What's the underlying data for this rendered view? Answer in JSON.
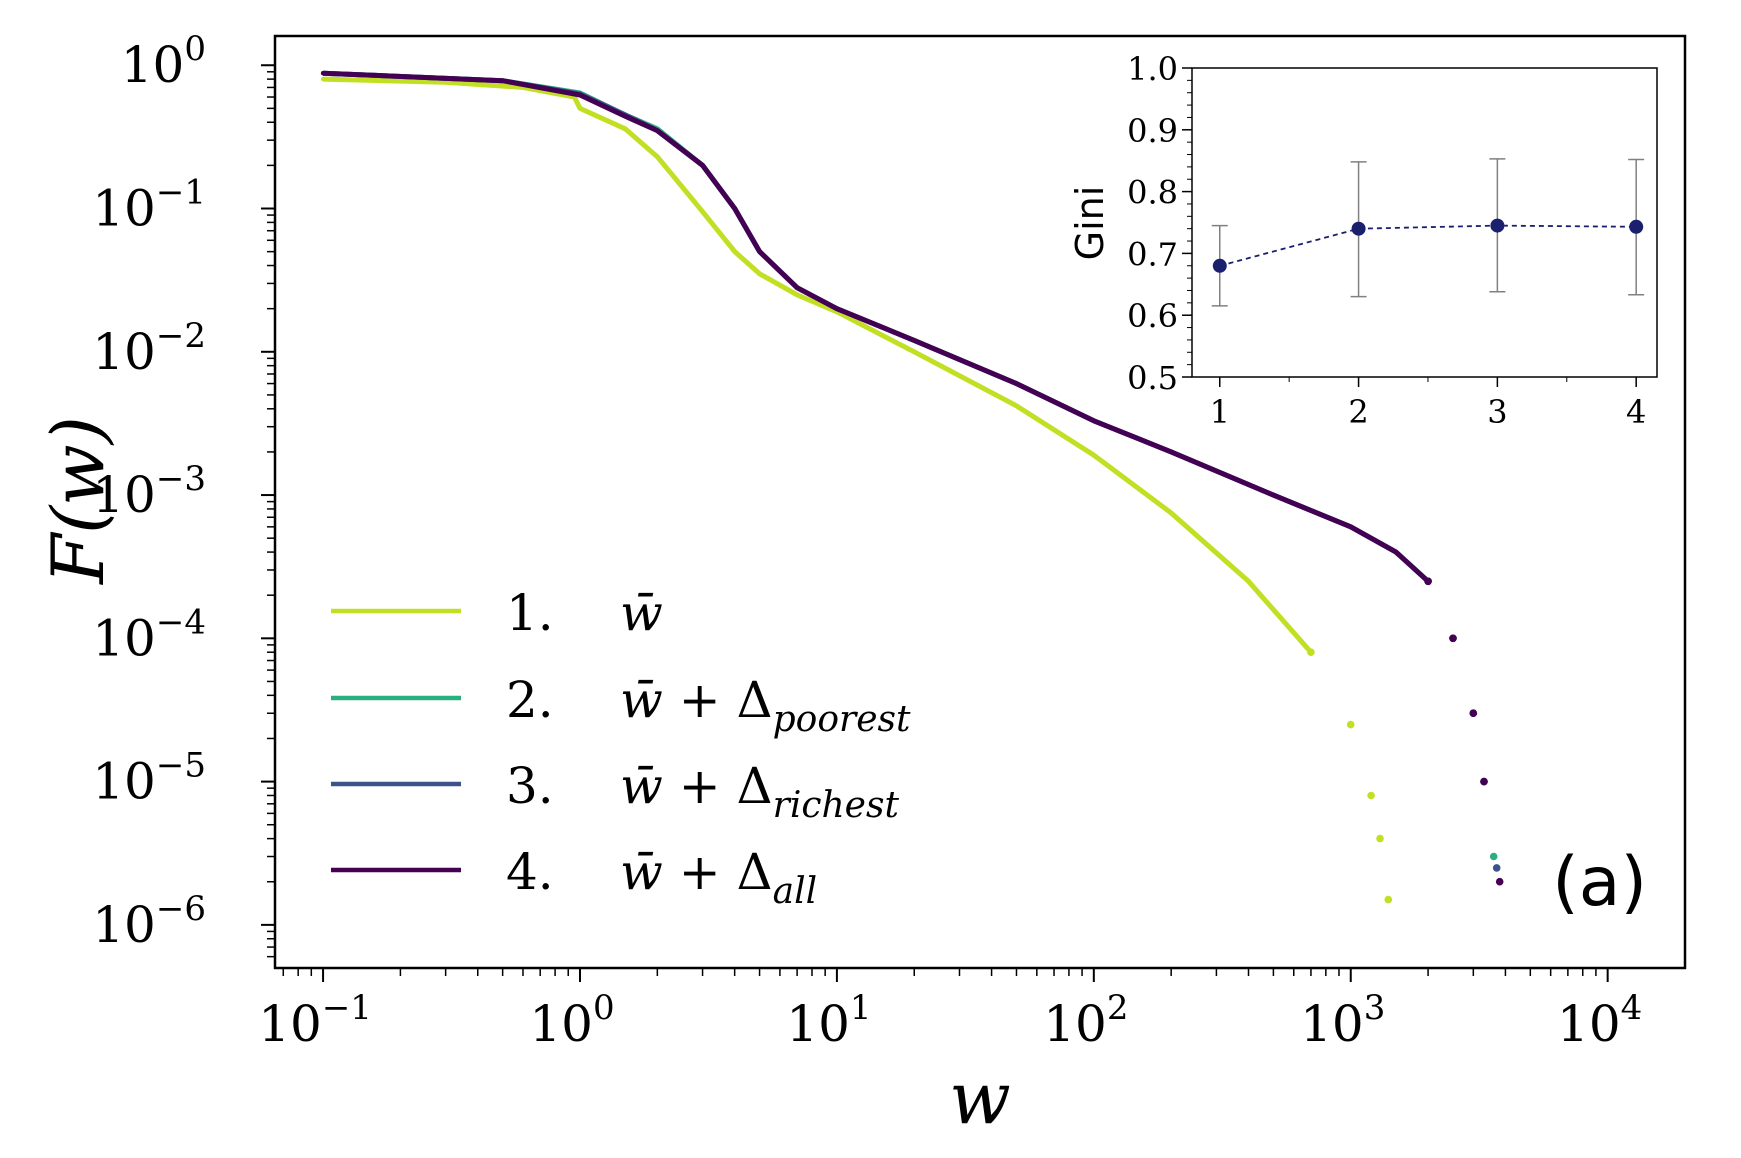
{
  "chart_data": [
    {
      "type": "line",
      "panel_label": "(a)",
      "xlabel": "w",
      "ylabel": "F(w)",
      "xscale": "log",
      "yscale": "log",
      "xlim": [
        0.065,
        20000
      ],
      "ylim": [
        5e-07,
        1.6
      ],
      "x_ticks": [
        {
          "value": 0.1,
          "base": "10",
          "exp": "−1"
        },
        {
          "value": 1,
          "base": "10",
          "exp": "0"
        },
        {
          "value": 10,
          "base": "10",
          "exp": "1"
        },
        {
          "value": 100,
          "base": "10",
          "exp": "2"
        },
        {
          "value": 1000,
          "base": "10",
          "exp": "3"
        },
        {
          "value": 10000,
          "base": "10",
          "exp": "4"
        }
      ],
      "y_ticks": [
        {
          "value": 1,
          "base": "10",
          "exp": "0"
        },
        {
          "value": 0.1,
          "base": "10",
          "exp": "−1"
        },
        {
          "value": 0.01,
          "base": "10",
          "exp": "−2"
        },
        {
          "value": 0.001,
          "base": "10",
          "exp": "−3"
        },
        {
          "value": 0.0001,
          "base": "10",
          "exp": "−4"
        },
        {
          "value": 1e-05,
          "base": "10",
          "exp": "−5"
        },
        {
          "value": 1e-06,
          "base": "10",
          "exp": "−6"
        }
      ],
      "legend_position": "lower-left",
      "series": [
        {
          "key": "s1",
          "number": "1.",
          "name_base": "w̄",
          "subscript": "",
          "color": "#c2df23",
          "x": [
            0.1,
            0.3,
            0.6,
            0.95,
            1.0,
            1.5,
            2.0,
            3.0,
            4.0,
            5.0,
            7.0,
            10,
            20,
            50,
            100,
            200,
            400,
            700,
            1000,
            1200,
            1300,
            1400
          ],
          "y": [
            0.8,
            0.76,
            0.7,
            0.6,
            0.5,
            0.36,
            0.23,
            0.095,
            0.05,
            0.035,
            0.025,
            0.019,
            0.01,
            0.0042,
            0.0019,
            0.00075,
            0.00025,
            8e-05,
            2.5e-05,
            8e-06,
            4e-06,
            1.5e-06
          ]
        },
        {
          "key": "s2",
          "number": "2.",
          "name_base": "w̄",
          "subscript": "poorest",
          "color": "#2ab07f",
          "x": [
            0.1,
            0.5,
            1.0,
            1.5,
            2.0,
            3.0,
            4.0,
            5.0,
            7.0,
            10,
            20,
            50,
            100,
            200,
            500,
            1000,
            1500,
            2000,
            2500,
            3000,
            3300,
            3600
          ],
          "y": [
            0.88,
            0.78,
            0.64,
            0.45,
            0.36,
            0.2,
            0.1,
            0.05,
            0.028,
            0.02,
            0.012,
            0.006,
            0.0033,
            0.002,
            0.001,
            0.0006,
            0.0004,
            0.00025,
            0.0001,
            3e-05,
            1e-05,
            3e-06
          ]
        },
        {
          "key": "s3",
          "number": "3.",
          "name_base": "w̄",
          "subscript": "richest",
          "color": "#3b528b",
          "x": [
            0.1,
            0.5,
            1.0,
            1.5,
            2.0,
            3.0,
            4.0,
            5.0,
            7.0,
            10,
            20,
            50,
            100,
            200,
            500,
            1000,
            1500,
            2000,
            2500,
            3000,
            3300,
            3700
          ],
          "y": [
            0.88,
            0.78,
            0.63,
            0.45,
            0.35,
            0.2,
            0.1,
            0.05,
            0.028,
            0.02,
            0.012,
            0.006,
            0.0033,
            0.002,
            0.001,
            0.0006,
            0.0004,
            0.00025,
            0.0001,
            3e-05,
            1e-05,
            2.5e-06
          ]
        },
        {
          "key": "s4",
          "number": "4.",
          "name_base": "w̄",
          "subscript": "all",
          "color": "#440154",
          "x": [
            0.1,
            0.5,
            1.0,
            1.5,
            2.0,
            3.0,
            4.0,
            5.0,
            7.0,
            10,
            20,
            50,
            100,
            200,
            500,
            1000,
            1500,
            2000,
            2500,
            3000,
            3300,
            3800
          ],
          "y": [
            0.88,
            0.78,
            0.62,
            0.44,
            0.35,
            0.2,
            0.1,
            0.05,
            0.028,
            0.02,
            0.012,
            0.006,
            0.0033,
            0.002,
            0.001,
            0.0006,
            0.0004,
            0.00025,
            0.0001,
            3e-05,
            1e-05,
            2e-06
          ]
        }
      ]
    },
    {
      "type": "scatter",
      "role": "inset",
      "ylabel": "Gini",
      "xlabel": "",
      "xlim": [
        0.8,
        4.15
      ],
      "ylim": [
        0.5,
        1.0
      ],
      "x_ticks": [
        "1",
        "2",
        "3",
        "4"
      ],
      "y_ticks": [
        "0.5",
        "0.6",
        "0.7",
        "0.8",
        "0.9",
        "1.0"
      ],
      "color": "#1a1f6e",
      "errorbar_color": "#808080",
      "x": [
        1,
        2,
        3,
        4
      ],
      "y": [
        0.68,
        0.74,
        0.745,
        0.743
      ],
      "y_err_low": [
        0.615,
        0.63,
        0.638,
        0.633
      ],
      "y_err_high": [
        0.745,
        0.848,
        0.853,
        0.852
      ]
    }
  ]
}
